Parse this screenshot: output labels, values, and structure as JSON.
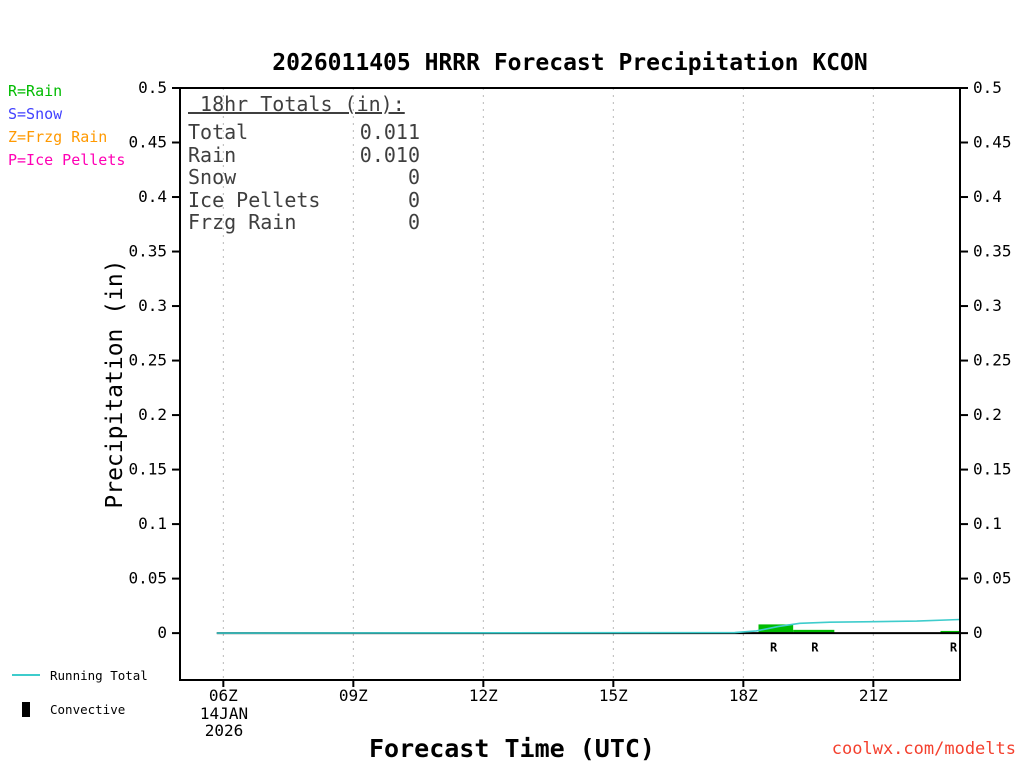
{
  "title": "2026011405 HRRR Forecast Precipitation KCON",
  "precip_legend": {
    "items": [
      {
        "id": "rain",
        "label": "R=Rain",
        "color": "#00bb00"
      },
      {
        "id": "snow",
        "label": "S=Snow",
        "color": "#4040ff"
      },
      {
        "id": "frzg-rain",
        "label": "Z=Frzg Rain",
        "color": "#ff9900"
      },
      {
        "id": "ice-pellets",
        "label": "P=Ice Pellets",
        "color": "#ff00b4"
      }
    ]
  },
  "totals_box": {
    "heading": " 18hr Totals (in):",
    "rows": [
      {
        "label": "Total",
        "value": "0.011"
      },
      {
        "label": "Rain",
        "value": "0.010"
      },
      {
        "label": "Snow",
        "value": "0"
      },
      {
        "label": "Ice Pellets",
        "value": "0"
      },
      {
        "label": "Frzg Rain",
        "value": "0"
      }
    ]
  },
  "axes": {
    "x_title": "Forecast Time (UTC)",
    "y_title": "Precipitation (in)",
    "date_line1": "14JAN",
    "date_line2": "2026"
  },
  "bottom_legend": {
    "running_total": {
      "label": "Running Total",
      "color": "#3ecccc"
    },
    "convective": {
      "label": "Convective",
      "color": "#000000"
    }
  },
  "watermark": {
    "text": "coolwx.com/modelts",
    "color": "#f4402e"
  },
  "chart_data": {
    "type": "line",
    "title": "2026011405 HRRR Forecast Precipitation KCON",
    "xlabel": "Forecast Time (UTC)",
    "ylabel": "Precipitation (in)",
    "x_axis_date": "14JAN 2026",
    "xlim": [
      5,
      23
    ],
    "ylim": [
      -0.043,
      0.5
    ],
    "grid": {
      "vertical_dotted_at_ticks": true,
      "color": "#b8b8b8"
    },
    "x_ticks": [
      {
        "hour": 6,
        "label": "06Z"
      },
      {
        "hour": 9,
        "label": "09Z"
      },
      {
        "hour": 12,
        "label": "12Z"
      },
      {
        "hour": 15,
        "label": "15Z"
      },
      {
        "hour": 18,
        "label": "18Z"
      },
      {
        "hour": 21,
        "label": "21Z"
      }
    ],
    "y_ticks": [
      {
        "v": 0,
        "label": "0"
      },
      {
        "v": 0.05,
        "label": "0.05"
      },
      {
        "v": 0.1,
        "label": "0.1"
      },
      {
        "v": 0.15,
        "label": "0.15"
      },
      {
        "v": 0.2,
        "label": "0.2"
      },
      {
        "v": 0.25,
        "label": "0.25"
      },
      {
        "v": 0.3,
        "label": "0.3"
      },
      {
        "v": 0.35,
        "label": "0.35"
      },
      {
        "v": 0.4,
        "label": "0.4"
      },
      {
        "v": 0.45,
        "label": "0.45"
      },
      {
        "v": 0.5,
        "label": "0.5"
      }
    ],
    "series": [
      {
        "name": "Rain",
        "type": "bar",
        "color": "#00bb00",
        "bars": [
          {
            "x1": 18.35,
            "x2": 19.15,
            "height": 0.008
          },
          {
            "x1": 19.15,
            "x2": 20.1,
            "height": 0.003
          },
          {
            "x1": 22.55,
            "x2": 23.0,
            "height": 0.002
          }
        ]
      },
      {
        "name": "Zero Baseline",
        "type": "line",
        "color": "#000000",
        "width": 2,
        "points": [
          [
            5.85,
            0
          ],
          [
            23,
            0
          ]
        ]
      },
      {
        "name": "Running Total",
        "type": "line",
        "color": "#3ecccc",
        "width": 1.6,
        "points": [
          [
            5.85,
            0
          ],
          [
            17.8,
            0.0005
          ],
          [
            18.3,
            0.002
          ],
          [
            18.8,
            0.006
          ],
          [
            19.3,
            0.009
          ],
          [
            20,
            0.01
          ],
          [
            21,
            0.0105
          ],
          [
            22,
            0.011
          ],
          [
            23,
            0.0125
          ]
        ]
      }
    ],
    "point_labels": [
      {
        "x": 18.7,
        "y": -0.013,
        "text": "R",
        "color": "#00bb00"
      },
      {
        "x": 19.65,
        "y": -0.013,
        "text": "R",
        "color": "#00bb00"
      },
      {
        "x": 22.85,
        "y": -0.013,
        "text": "R",
        "color": "#00bb00"
      }
    ],
    "totals_18hr_in": {
      "total": 0.011,
      "rain": 0.01,
      "snow": 0,
      "ice_pellets": 0,
      "frzg_rain": 0
    }
  }
}
